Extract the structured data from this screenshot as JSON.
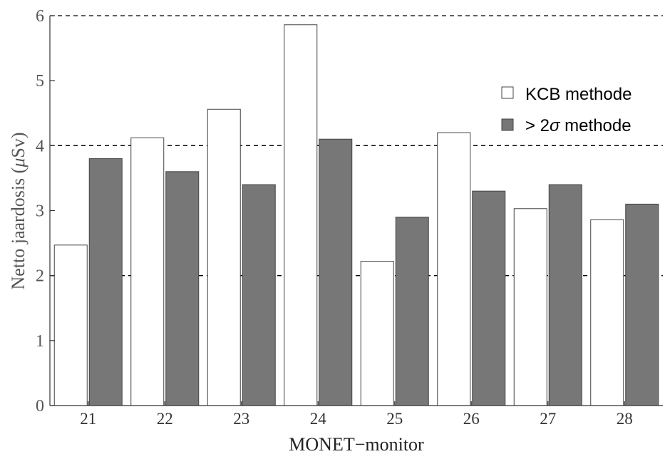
{
  "chart_data": {
    "type": "bar",
    "title": "",
    "xlabel": "MONET−monitor",
    "ylabel_main": "Netto jaardosis (",
    "ylabel_unit_greek": "μ",
    "ylabel_unit_rest": "Sv)",
    "categories": [
      "21",
      "22",
      "23",
      "24",
      "25",
      "26",
      "27",
      "28"
    ],
    "series": [
      {
        "name": "KCB methode",
        "fill": "#ffffff",
        "stroke": "#444444",
        "values": [
          2.47,
          4.12,
          4.56,
          5.86,
          2.22,
          4.2,
          3.03,
          2.86
        ]
      },
      {
        "name_prefix": "> 2",
        "name_sigma": "σ",
        "name_suffix": " methode",
        "fill": "#777777",
        "stroke": "#444444",
        "values": [
          3.8,
          3.6,
          3.4,
          4.1,
          2.9,
          3.3,
          3.4,
          3.1
        ]
      }
    ],
    "ylim": [
      0,
      6
    ],
    "yticks": [
      "0",
      "1",
      "2",
      "3",
      "4",
      "5",
      "6"
    ],
    "gridlines": [
      2,
      4,
      6
    ],
    "gridline_style": "dashed",
    "legend": "top-right"
  }
}
